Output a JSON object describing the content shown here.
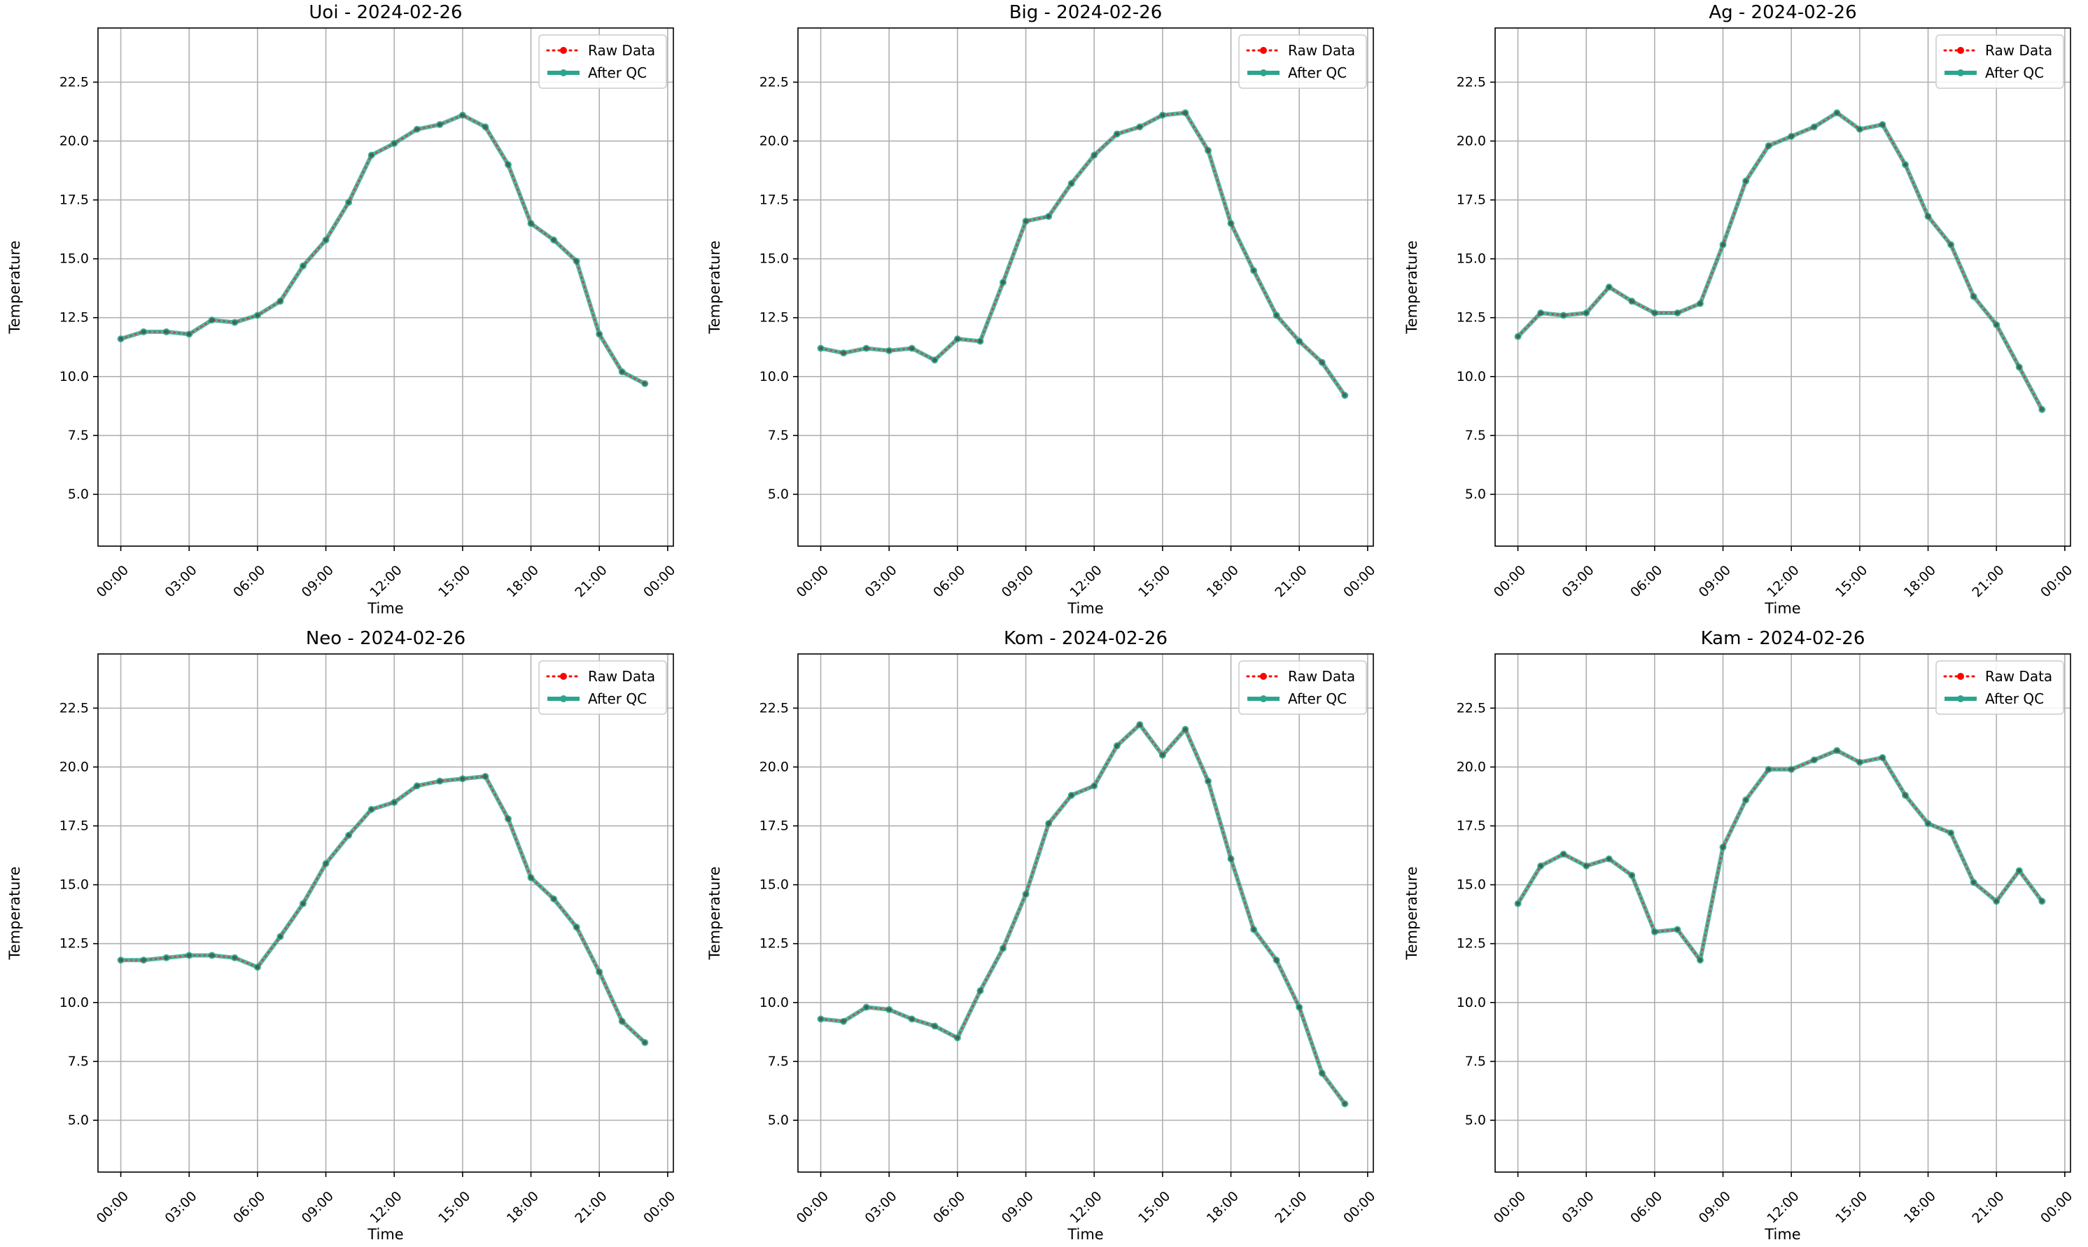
{
  "colors": {
    "raw": "#ff0000",
    "qc": "#2ca58d",
    "grid": "#b0b0b0",
    "axes": "#000000",
    "legend_border": "#cccccc"
  },
  "legend": {
    "raw_label": "Raw Data",
    "qc_label": "After QC",
    "placement": "upper-right"
  },
  "chart_data": [
    {
      "type": "line",
      "title": "Uoi - 2024-02-26",
      "xlabel": "Time",
      "ylabel": "Temperature",
      "xlim": [
        "2024-02-25T23:00",
        "2024-02-27T00:15"
      ],
      "ylim": [
        2.8,
        24.8
      ],
      "grid": true,
      "xticks": [
        "00:00",
        "03:00",
        "06:00",
        "09:00",
        "12:00",
        "15:00",
        "18:00",
        "21:00",
        "00:00"
      ],
      "yticks": [
        "5.0",
        "7.5",
        "10.0",
        "12.5",
        "15.0",
        "17.5",
        "20.0",
        "22.5"
      ],
      "x": [
        "00:00",
        "01:00",
        "02:00",
        "03:00",
        "04:00",
        "05:00",
        "06:00",
        "07:00",
        "08:00",
        "09:00",
        "10:00",
        "11:00",
        "12:00",
        "13:00",
        "14:00",
        "15:00",
        "16:00",
        "17:00",
        "18:00",
        "19:00",
        "20:00",
        "21:00",
        "22:00",
        "23:00"
      ],
      "series": [
        {
          "name": "Raw Data",
          "values": [
            11.6,
            11.9,
            11.9,
            11.8,
            12.4,
            12.3,
            12.6,
            13.2,
            14.7,
            15.8,
            17.4,
            19.4,
            19.9,
            20.5,
            20.7,
            21.1,
            20.6,
            19.0,
            16.5,
            15.8,
            14.9,
            11.8,
            10.2,
            9.7
          ]
        },
        {
          "name": "After QC",
          "values": [
            11.6,
            11.9,
            11.9,
            11.8,
            12.4,
            12.3,
            12.6,
            13.2,
            14.7,
            15.8,
            17.4,
            19.4,
            19.9,
            20.5,
            20.7,
            21.1,
            20.6,
            19.0,
            16.5,
            15.8,
            14.9,
            11.8,
            10.2,
            9.7
          ]
        }
      ]
    },
    {
      "type": "line",
      "title": "Big - 2024-02-26",
      "xlabel": "Time",
      "ylabel": "Temperature",
      "xlim": [
        "2024-02-25T23:00",
        "2024-02-27T00:15"
      ],
      "ylim": [
        2.8,
        24.8
      ],
      "grid": true,
      "xticks": [
        "00:00",
        "03:00",
        "06:00",
        "09:00",
        "12:00",
        "15:00",
        "18:00",
        "21:00",
        "00:00"
      ],
      "yticks": [
        "5.0",
        "7.5",
        "10.0",
        "12.5",
        "15.0",
        "17.5",
        "20.0",
        "22.5"
      ],
      "x": [
        "00:00",
        "01:00",
        "02:00",
        "03:00",
        "04:00",
        "05:00",
        "06:00",
        "07:00",
        "08:00",
        "09:00",
        "10:00",
        "11:00",
        "12:00",
        "13:00",
        "14:00",
        "15:00",
        "16:00",
        "17:00",
        "18:00",
        "19:00",
        "20:00",
        "21:00",
        "22:00",
        "23:00"
      ],
      "series": [
        {
          "name": "Raw Data",
          "values": [
            11.2,
            11.0,
            11.2,
            11.1,
            11.2,
            10.7,
            11.6,
            11.5,
            14.0,
            16.6,
            16.8,
            18.2,
            19.4,
            20.3,
            20.6,
            21.1,
            21.2,
            19.6,
            16.5,
            14.5,
            12.6,
            11.5,
            10.6,
            9.2
          ]
        },
        {
          "name": "After QC",
          "values": [
            11.2,
            11.0,
            11.2,
            11.1,
            11.2,
            10.7,
            11.6,
            11.5,
            14.0,
            16.6,
            16.8,
            18.2,
            19.4,
            20.3,
            20.6,
            21.1,
            21.2,
            19.6,
            16.5,
            14.5,
            12.6,
            11.5,
            10.6,
            9.2
          ]
        }
      ]
    },
    {
      "type": "line",
      "title": "Ag - 2024-02-26",
      "xlabel": "Time",
      "ylabel": "Temperature",
      "xlim": [
        "2024-02-25T23:00",
        "2024-02-27T00:15"
      ],
      "ylim": [
        2.8,
        24.8
      ],
      "grid": true,
      "xticks": [
        "00:00",
        "03:00",
        "06:00",
        "09:00",
        "12:00",
        "15:00",
        "18:00",
        "21:00",
        "00:00"
      ],
      "yticks": [
        "5.0",
        "7.5",
        "10.0",
        "12.5",
        "15.0",
        "17.5",
        "20.0",
        "22.5"
      ],
      "x": [
        "00:00",
        "01:00",
        "02:00",
        "03:00",
        "04:00",
        "05:00",
        "06:00",
        "07:00",
        "08:00",
        "09:00",
        "10:00",
        "11:00",
        "12:00",
        "13:00",
        "14:00",
        "15:00",
        "16:00",
        "17:00",
        "18:00",
        "19:00",
        "20:00",
        "21:00",
        "22:00",
        "23:00"
      ],
      "series": [
        {
          "name": "Raw Data",
          "values": [
            11.7,
            12.7,
            12.6,
            12.7,
            13.8,
            13.2,
            12.7,
            12.7,
            13.1,
            15.6,
            18.3,
            19.8,
            20.2,
            20.6,
            21.2,
            20.5,
            20.7,
            19.0,
            16.8,
            15.6,
            13.4,
            12.2,
            10.4,
            8.6
          ]
        },
        {
          "name": "After QC",
          "values": [
            11.7,
            12.7,
            12.6,
            12.7,
            13.8,
            13.2,
            12.7,
            12.7,
            13.1,
            15.6,
            18.3,
            19.8,
            20.2,
            20.6,
            21.2,
            20.5,
            20.7,
            19.0,
            16.8,
            15.6,
            13.4,
            12.2,
            10.4,
            8.6
          ]
        }
      ]
    },
    {
      "type": "line",
      "title": "Neo - 2024-02-26",
      "xlabel": "Time",
      "ylabel": "Temperature",
      "xlim": [
        "2024-02-25T23:00",
        "2024-02-27T00:15"
      ],
      "ylim": [
        2.8,
        24.8
      ],
      "grid": true,
      "xticks": [
        "00:00",
        "03:00",
        "06:00",
        "09:00",
        "12:00",
        "15:00",
        "18:00",
        "21:00",
        "00:00"
      ],
      "yticks": [
        "5.0",
        "7.5",
        "10.0",
        "12.5",
        "15.0",
        "17.5",
        "20.0",
        "22.5"
      ],
      "x": [
        "00:00",
        "01:00",
        "02:00",
        "03:00",
        "04:00",
        "05:00",
        "06:00",
        "07:00",
        "08:00",
        "09:00",
        "10:00",
        "11:00",
        "12:00",
        "13:00",
        "14:00",
        "15:00",
        "16:00",
        "17:00",
        "18:00",
        "19:00",
        "20:00",
        "21:00",
        "22:00",
        "23:00"
      ],
      "series": [
        {
          "name": "Raw Data",
          "values": [
            11.8,
            11.8,
            11.9,
            12.0,
            12.0,
            11.9,
            11.5,
            12.8,
            14.2,
            15.9,
            17.1,
            18.2,
            18.5,
            19.2,
            19.4,
            19.5,
            19.6,
            17.8,
            15.3,
            14.4,
            13.2,
            11.3,
            9.2,
            8.3
          ]
        },
        {
          "name": "After QC",
          "values": [
            11.8,
            11.8,
            11.9,
            12.0,
            12.0,
            11.9,
            11.5,
            12.8,
            14.2,
            15.9,
            17.1,
            18.2,
            18.5,
            19.2,
            19.4,
            19.5,
            19.6,
            17.8,
            15.3,
            14.4,
            13.2,
            11.3,
            9.2,
            8.3
          ]
        }
      ]
    },
    {
      "type": "line",
      "title": "Kom - 2024-02-26",
      "xlabel": "Time",
      "ylabel": "Temperature",
      "xlim": [
        "2024-02-25T23:00",
        "2024-02-27T00:15"
      ],
      "ylim": [
        2.8,
        24.8
      ],
      "grid": true,
      "xticks": [
        "00:00",
        "03:00",
        "06:00",
        "09:00",
        "12:00",
        "15:00",
        "18:00",
        "21:00",
        "00:00"
      ],
      "yticks": [
        "5.0",
        "7.5",
        "10.0",
        "12.5",
        "15.0",
        "17.5",
        "20.0",
        "22.5"
      ],
      "x": [
        "00:00",
        "01:00",
        "02:00",
        "03:00",
        "04:00",
        "05:00",
        "06:00",
        "07:00",
        "08:00",
        "09:00",
        "10:00",
        "11:00",
        "12:00",
        "13:00",
        "14:00",
        "15:00",
        "16:00",
        "17:00",
        "18:00",
        "19:00",
        "20:00",
        "21:00",
        "22:00",
        "23:00"
      ],
      "series": [
        {
          "name": "Raw Data",
          "values": [
            9.3,
            9.2,
            9.8,
            9.7,
            9.3,
            9.0,
            8.5,
            10.5,
            12.3,
            14.6,
            17.6,
            18.8,
            19.2,
            20.9,
            21.8,
            20.5,
            21.6,
            19.4,
            16.1,
            13.1,
            11.8,
            9.8,
            7.0,
            5.7
          ]
        },
        {
          "name": "After QC",
          "values": [
            9.3,
            9.2,
            9.8,
            9.7,
            9.3,
            9.0,
            8.5,
            10.5,
            12.3,
            14.6,
            17.6,
            18.8,
            19.2,
            20.9,
            21.8,
            20.5,
            21.6,
            19.4,
            16.1,
            13.1,
            11.8,
            9.8,
            7.0,
            5.7
          ]
        }
      ]
    },
    {
      "type": "line",
      "title": "Kam - 2024-02-26",
      "xlabel": "Time",
      "ylabel": "Temperature",
      "xlim": [
        "2024-02-25T23:00",
        "2024-02-27T00:15"
      ],
      "ylim": [
        2.8,
        24.8
      ],
      "grid": true,
      "xticks": [
        "00:00",
        "03:00",
        "06:00",
        "09:00",
        "12:00",
        "15:00",
        "18:00",
        "21:00",
        "00:00"
      ],
      "yticks": [
        "5.0",
        "7.5",
        "10.0",
        "12.5",
        "15.0",
        "17.5",
        "20.0",
        "22.5"
      ],
      "x": [
        "00:00",
        "01:00",
        "02:00",
        "03:00",
        "04:00",
        "05:00",
        "06:00",
        "07:00",
        "08:00",
        "09:00",
        "10:00",
        "11:00",
        "12:00",
        "13:00",
        "14:00",
        "15:00",
        "16:00",
        "17:00",
        "18:00",
        "19:00",
        "20:00",
        "21:00",
        "22:00",
        "23:00"
      ],
      "series": [
        {
          "name": "Raw Data",
          "values": [
            14.2,
            15.8,
            16.3,
            15.8,
            16.1,
            15.4,
            13.0,
            13.1,
            11.8,
            16.6,
            18.6,
            19.9,
            19.9,
            20.3,
            20.7,
            20.2,
            20.4,
            18.8,
            17.6,
            17.2,
            15.1,
            14.3,
            15.6,
            14.3
          ]
        },
        {
          "name": "After QC",
          "values": [
            14.2,
            15.8,
            16.3,
            15.8,
            16.1,
            15.4,
            13.0,
            13.1,
            11.8,
            16.6,
            18.6,
            19.9,
            19.9,
            20.3,
            20.7,
            20.2,
            20.4,
            18.8,
            17.6,
            17.2,
            15.1,
            14.3,
            15.6,
            14.3
          ]
        }
      ]
    }
  ]
}
